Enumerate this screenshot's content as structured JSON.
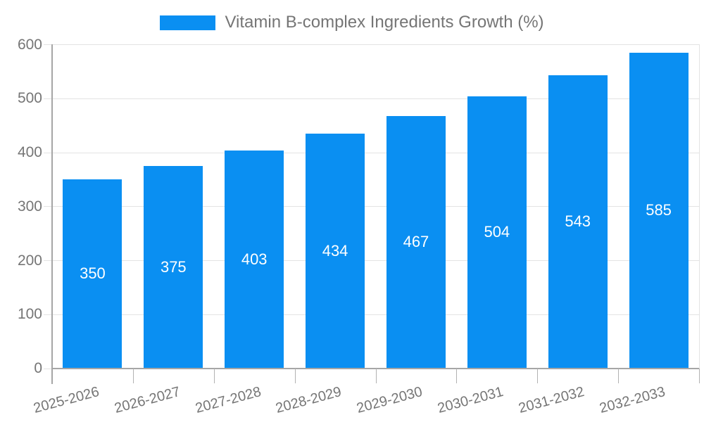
{
  "chart_data": {
    "type": "bar",
    "title": "Vitamin B-complex Ingredients Growth (%)",
    "legend": {
      "position": "top",
      "label": "Vitamin B-complex Ingredients Growth (%)"
    },
    "categories": [
      "2025-2026",
      "2026-2027",
      "2027-2028",
      "2028-2029",
      "2029-2030",
      "2030-2031",
      "2031-2032",
      "2032-2033"
    ],
    "values": [
      350,
      375,
      403,
      434,
      467,
      504,
      543,
      585
    ],
    "value_labels": [
      "350",
      "375",
      "403",
      "434",
      "467",
      "504",
      "543",
      "585"
    ],
    "xlabel": "",
    "ylabel": "",
    "ylim": [
      0,
      600
    ],
    "yticks": [
      0,
      100,
      200,
      300,
      400,
      500,
      600
    ],
    "grid": true,
    "x_label_rotation_deg": -15,
    "colors": {
      "bar": "#0a8ff2",
      "bar_value_text": "#ffffff",
      "axis_text": "#757575",
      "axis_line": "#a6a6a6",
      "gridline": "#e3e3e3",
      "background": "#ffffff"
    }
  }
}
